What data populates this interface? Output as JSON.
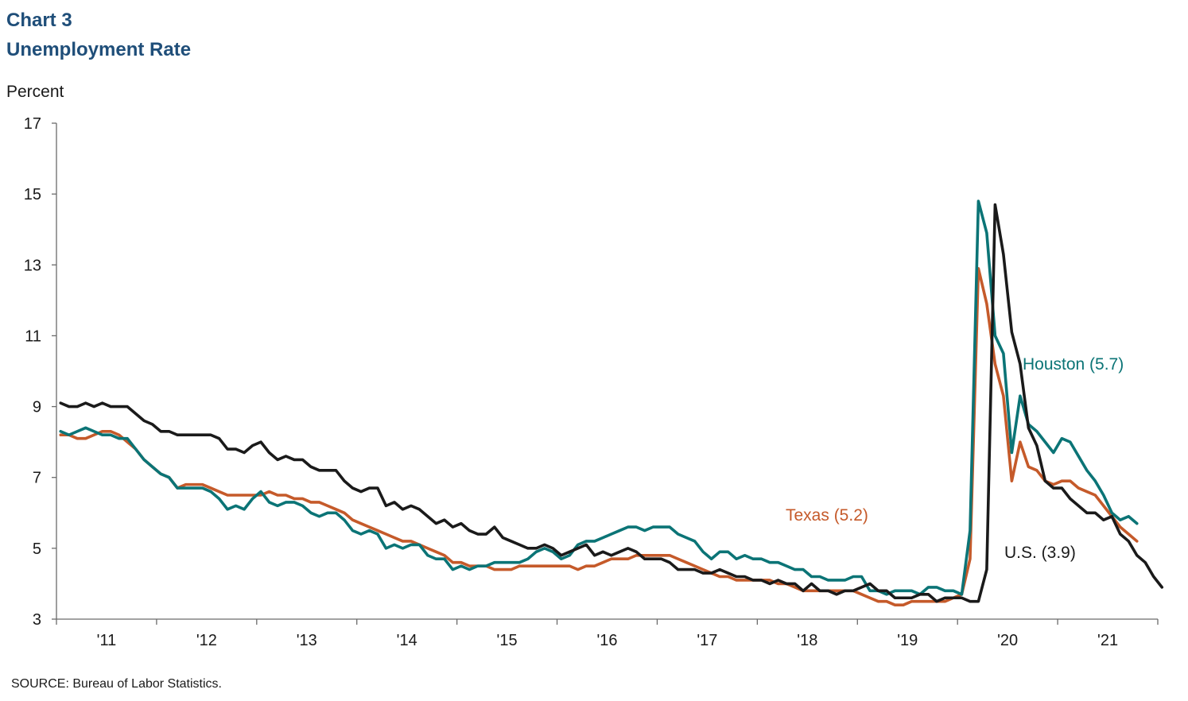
{
  "figure": {
    "title_line1": "Chart 3",
    "title_line2": "Unemployment Rate",
    "source": "SOURCE:  Bureau  of Labor Statistics."
  },
  "chart_data": {
    "type": "line",
    "ylabel": "Percent",
    "xlabel": "",
    "ylim": [
      3,
      17
    ],
    "yticks": [
      3,
      5,
      7,
      9,
      11,
      13,
      15,
      17
    ],
    "xlim": [
      "2011-01",
      "2021-12"
    ],
    "x_tick_labels": [
      "'11",
      "'12",
      "'13",
      "'14",
      "'15",
      "'16",
      "'17",
      "'18",
      "'19",
      "'20",
      "'21"
    ],
    "grid": false,
    "series": [
      {
        "name": "Houston (5.7)",
        "color": "#0b7476",
        "start": "2011-01",
        "values": [
          8.3,
          8.2,
          8.3,
          8.4,
          8.3,
          8.2,
          8.2,
          8.1,
          8.1,
          7.8,
          7.5,
          7.3,
          7.1,
          7.0,
          6.7,
          6.7,
          6.7,
          6.7,
          6.6,
          6.4,
          6.1,
          6.2,
          6.1,
          6.4,
          6.6,
          6.3,
          6.2,
          6.3,
          6.3,
          6.2,
          6.0,
          5.9,
          6.0,
          6.0,
          5.8,
          5.5,
          5.4,
          5.5,
          5.4,
          5.0,
          5.1,
          5.0,
          5.1,
          5.1,
          4.8,
          4.7,
          4.7,
          4.4,
          4.5,
          4.4,
          4.5,
          4.5,
          4.6,
          4.6,
          4.6,
          4.6,
          4.7,
          4.9,
          5.0,
          4.9,
          4.7,
          4.8,
          5.1,
          5.2,
          5.2,
          5.3,
          5.4,
          5.5,
          5.6,
          5.6,
          5.5,
          5.6,
          5.6,
          5.6,
          5.4,
          5.3,
          5.2,
          4.9,
          4.7,
          4.9,
          4.9,
          4.7,
          4.8,
          4.7,
          4.7,
          4.6,
          4.6,
          4.5,
          4.4,
          4.4,
          4.2,
          4.2,
          4.1,
          4.1,
          4.1,
          4.2,
          4.2,
          3.8,
          3.8,
          3.7,
          3.8,
          3.8,
          3.8,
          3.7,
          3.9,
          3.9,
          3.8,
          3.8,
          3.7,
          5.5,
          14.8,
          13.9,
          11.0,
          10.5,
          7.7,
          9.3,
          8.5,
          8.3,
          8.0,
          7.7,
          8.1,
          8.0,
          7.6,
          7.2,
          6.9,
          6.5,
          6.0,
          5.8,
          5.9,
          5.7
        ]
      },
      {
        "name": "Texas (5.2)",
        "color": "#c55a2a",
        "start": "2011-01",
        "values": [
          8.2,
          8.2,
          8.1,
          8.1,
          8.2,
          8.3,
          8.3,
          8.2,
          8.0,
          7.8,
          7.5,
          7.3,
          7.1,
          7.0,
          6.7,
          6.8,
          6.8,
          6.8,
          6.7,
          6.6,
          6.5,
          6.5,
          6.5,
          6.5,
          6.5,
          6.6,
          6.5,
          6.5,
          6.4,
          6.4,
          6.3,
          6.3,
          6.2,
          6.1,
          6.0,
          5.8,
          5.7,
          5.6,
          5.5,
          5.4,
          5.3,
          5.2,
          5.2,
          5.1,
          5.0,
          4.9,
          4.8,
          4.6,
          4.6,
          4.5,
          4.5,
          4.5,
          4.4,
          4.4,
          4.4,
          4.5,
          4.5,
          4.5,
          4.5,
          4.5,
          4.5,
          4.5,
          4.4,
          4.5,
          4.5,
          4.6,
          4.7,
          4.7,
          4.7,
          4.8,
          4.8,
          4.8,
          4.8,
          4.8,
          4.7,
          4.6,
          4.5,
          4.4,
          4.3,
          4.2,
          4.2,
          4.1,
          4.1,
          4.1,
          4.1,
          4.1,
          4.0,
          4.0,
          3.9,
          3.8,
          3.8,
          3.8,
          3.8,
          3.8,
          3.8,
          3.8,
          3.7,
          3.6,
          3.5,
          3.5,
          3.4,
          3.4,
          3.5,
          3.5,
          3.5,
          3.5,
          3.5,
          3.6,
          3.7,
          4.7,
          12.9,
          11.9,
          10.2,
          9.3,
          6.9,
          8.0,
          7.3,
          7.2,
          6.9,
          6.8,
          6.9,
          6.9,
          6.7,
          6.6,
          6.5,
          6.2,
          5.9,
          5.6,
          5.4,
          5.2
        ]
      },
      {
        "name": "U.S. (3.9)",
        "color": "#1a1a1a",
        "start": "2011-01",
        "values": [
          9.1,
          9.0,
          9.0,
          9.1,
          9.0,
          9.1,
          9.0,
          9.0,
          9.0,
          8.8,
          8.6,
          8.5,
          8.3,
          8.3,
          8.2,
          8.2,
          8.2,
          8.2,
          8.2,
          8.1,
          7.8,
          7.8,
          7.7,
          7.9,
          8.0,
          7.7,
          7.5,
          7.6,
          7.5,
          7.5,
          7.3,
          7.2,
          7.2,
          7.2,
          6.9,
          6.7,
          6.6,
          6.7,
          6.7,
          6.2,
          6.3,
          6.1,
          6.2,
          6.1,
          5.9,
          5.7,
          5.8,
          5.6,
          5.7,
          5.5,
          5.4,
          5.4,
          5.6,
          5.3,
          5.2,
          5.1,
          5.0,
          5.0,
          5.1,
          5.0,
          4.8,
          4.9,
          5.0,
          5.1,
          4.8,
          4.9,
          4.8,
          4.9,
          5.0,
          4.9,
          4.7,
          4.7,
          4.7,
          4.6,
          4.4,
          4.4,
          4.4,
          4.3,
          4.3,
          4.4,
          4.3,
          4.2,
          4.2,
          4.1,
          4.1,
          4.0,
          4.1,
          4.0,
          4.0,
          3.8,
          4.0,
          3.8,
          3.8,
          3.7,
          3.8,
          3.8,
          3.9,
          4.0,
          3.8,
          3.8,
          3.6,
          3.6,
          3.6,
          3.7,
          3.7,
          3.5,
          3.6,
          3.6,
          3.6,
          3.5,
          3.5,
          4.4,
          14.7,
          13.3,
          11.1,
          10.2,
          8.4,
          7.9,
          6.9,
          6.7,
          6.7,
          6.4,
          6.2,
          6.0,
          6.0,
          5.8,
          5.9,
          5.4,
          5.2,
          4.8,
          4.6,
          4.2,
          3.9
        ]
      }
    ],
    "annotations": [
      {
        "text": "Houston (5.7)",
        "series": 0
      },
      {
        "text": "Texas (5.2)",
        "series": 1
      },
      {
        "text": "U.S. (3.9)",
        "series": 2
      }
    ]
  }
}
